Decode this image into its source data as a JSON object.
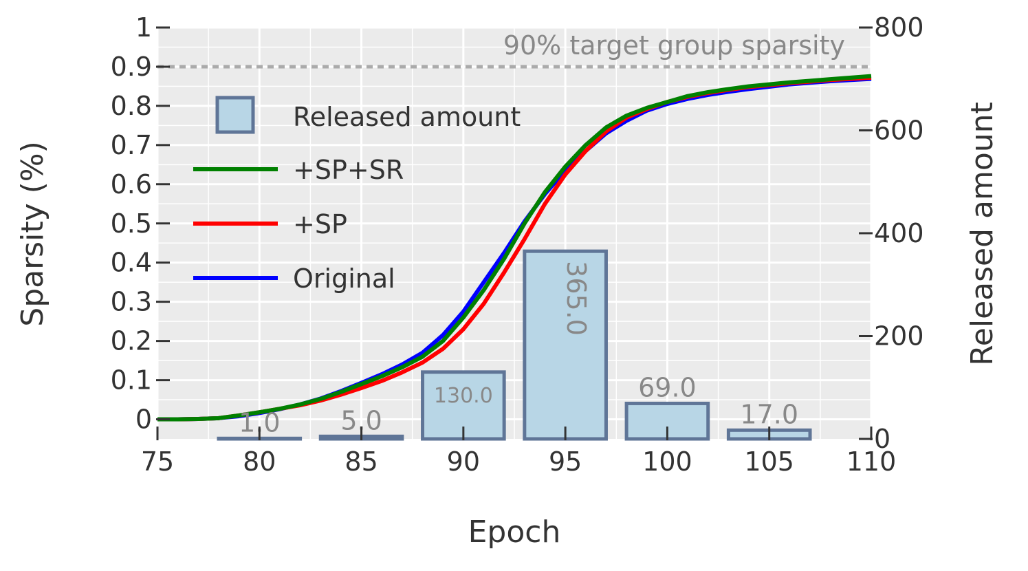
{
  "chart_data": {
    "type": "bar+line",
    "xlabel": "Epoch",
    "ylabel": "Sparsity (%)",
    "y2label": "Released amount",
    "xlim": [
      75,
      110
    ],
    "ylim": [
      -0.05,
      1.0
    ],
    "y2lim": [
      0,
      800
    ],
    "xticks": [
      "75",
      "80",
      "85",
      "90",
      "95",
      "100",
      "105",
      "110"
    ],
    "yticks": [
      "0",
      "0.1",
      "0.2",
      "0.3",
      "0.4",
      "0.5",
      "0.6",
      "0.7",
      "0.8",
      "0.9",
      "1"
    ],
    "y2ticks": [
      "0",
      "200",
      "400",
      "600",
      "800"
    ],
    "grid": true,
    "legend_position": "upper-left",
    "reference_line": {
      "y": 0.9,
      "label": "90% target group sparsity",
      "color": "#aaaaaa"
    },
    "bars": {
      "name": "Released amount",
      "color": "#b8d6e6",
      "edge_color": "#5f7597",
      "x": [
        75,
        80,
        85,
        90,
        95,
        100,
        105,
        110
      ],
      "values": [
        0,
        1,
        5,
        130,
        365,
        69,
        17,
        0
      ],
      "labels": [
        "",
        "1.0",
        "5.0",
        "130.0",
        "365.0",
        "69.0",
        "17.0",
        ""
      ]
    },
    "series": [
      {
        "name": "+SP+SR",
        "color": "#008000",
        "x": [
          75,
          76,
          77,
          78,
          79,
          80,
          81,
          82,
          83,
          84,
          85,
          86,
          87,
          88,
          89,
          90,
          91,
          92,
          93,
          94,
          95,
          96,
          97,
          98,
          99,
          100,
          101,
          102,
          103,
          104,
          105,
          106,
          107,
          108,
          109,
          110
        ],
        "values": [
          0.0,
          0.0,
          0.001,
          0.003,
          0.01,
          0.018,
          0.027,
          0.038,
          0.052,
          0.07,
          0.09,
          0.11,
          0.133,
          0.16,
          0.2,
          0.26,
          0.33,
          0.41,
          0.5,
          0.58,
          0.645,
          0.7,
          0.745,
          0.775,
          0.795,
          0.81,
          0.825,
          0.835,
          0.843,
          0.85,
          0.855,
          0.86,
          0.864,
          0.868,
          0.872,
          0.876
        ]
      },
      {
        "name": "+SP",
        "color": "#ff0000",
        "x": [
          75,
          76,
          77,
          78,
          79,
          80,
          81,
          82,
          83,
          84,
          85,
          86,
          87,
          88,
          89,
          90,
          91,
          92,
          93,
          94,
          95,
          96,
          97,
          98,
          99,
          100,
          101,
          102,
          103,
          104,
          105,
          106,
          107,
          108,
          109,
          110
        ],
        "values": [
          0.0,
          0.0,
          0.001,
          0.003,
          0.01,
          0.018,
          0.027,
          0.036,
          0.048,
          0.063,
          0.08,
          0.098,
          0.12,
          0.145,
          0.18,
          0.23,
          0.295,
          0.375,
          0.46,
          0.55,
          0.625,
          0.685,
          0.735,
          0.77,
          0.792,
          0.81,
          0.823,
          0.833,
          0.841,
          0.848,
          0.853,
          0.858,
          0.862,
          0.866,
          0.869,
          0.872
        ]
      },
      {
        "name": "Original",
        "color": "#0000ff",
        "x": [
          75,
          76,
          77,
          78,
          79,
          80,
          81,
          82,
          83,
          84,
          85,
          86,
          87,
          88,
          89,
          90,
          91,
          92,
          93,
          94,
          95,
          96,
          97,
          98,
          99,
          100,
          101,
          102,
          103,
          104,
          105,
          106,
          107,
          108,
          109,
          110
        ],
        "values": [
          0.0,
          0.0,
          0.001,
          0.003,
          0.008,
          0.016,
          0.026,
          0.038,
          0.053,
          0.072,
          0.093,
          0.115,
          0.14,
          0.17,
          0.215,
          0.275,
          0.35,
          0.425,
          0.505,
          0.575,
          0.635,
          0.685,
          0.73,
          0.762,
          0.788,
          0.805,
          0.818,
          0.828,
          0.836,
          0.843,
          0.849,
          0.855,
          0.859,
          0.863,
          0.866,
          0.869
        ]
      }
    ]
  }
}
